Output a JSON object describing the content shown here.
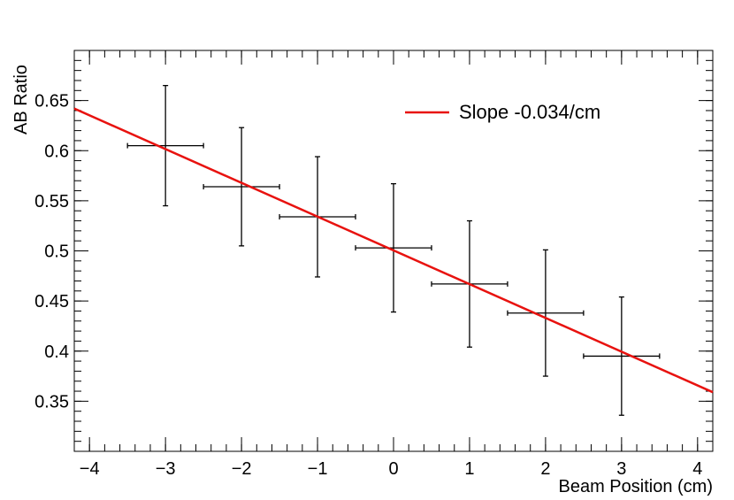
{
  "chart_data": {
    "type": "scatter",
    "title": "",
    "xlabel": "Beam Position (cm)",
    "ylabel": "AB Ratio",
    "xlim": [
      -4.2,
      4.2
    ],
    "ylim": [
      0.3,
      0.7
    ],
    "x_ticks": [
      -4,
      -3,
      -2,
      -1,
      0,
      1,
      2,
      3,
      4
    ],
    "x_tick_labels": [
      "−4",
      "−3",
      "−2",
      "−1",
      "0",
      "1",
      "2",
      "3",
      "4"
    ],
    "y_ticks": [
      0.35,
      0.4,
      0.45,
      0.5,
      0.55,
      0.6,
      0.65
    ],
    "y_tick_labels": [
      "0.35",
      "0.4",
      "0.45",
      "0.5",
      "0.55",
      "0.6",
      "0.65"
    ],
    "grid": false,
    "legend_position": "top-right",
    "series": [
      {
        "kind": "points_with_error_bars",
        "color": "#000000",
        "x": [
          -3,
          -2,
          -1,
          0,
          1,
          2,
          3
        ],
        "y": [
          0.605,
          0.564,
          0.534,
          0.503,
          0.467,
          0.438,
          0.395
        ],
        "x_err": [
          0.5,
          0.5,
          0.5,
          0.5,
          0.5,
          0.5,
          0.5
        ],
        "y_err": [
          0.06,
          0.059,
          0.06,
          0.064,
          0.063,
          0.063,
          0.059
        ]
      },
      {
        "kind": "fit_line",
        "name": "Slope -0.034/cm",
        "color": "#e8120f",
        "x": [
          -4.2,
          4.2
        ],
        "y": [
          0.642,
          0.359
        ]
      }
    ]
  }
}
